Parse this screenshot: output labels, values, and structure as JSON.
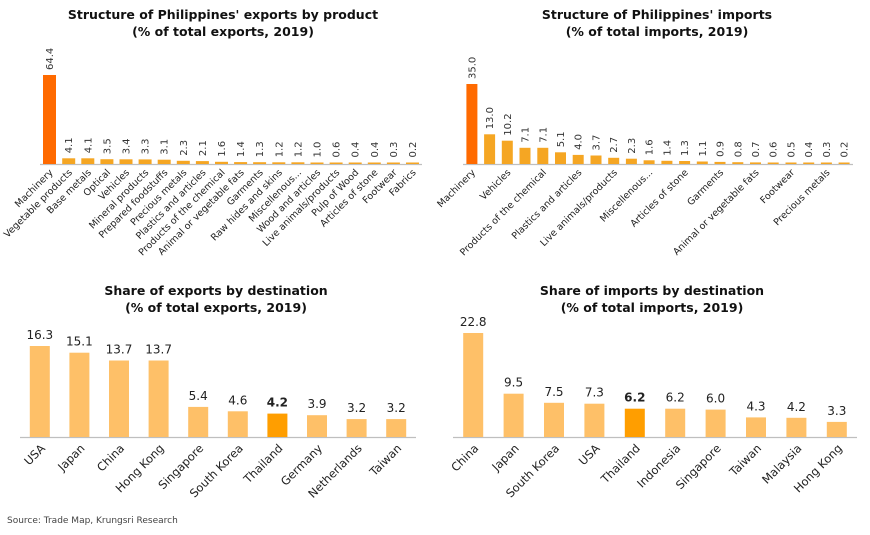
{
  "source": "Source: Trade Map, Krungsri Research",
  "colors": {
    "highlight_dark": "#FF6A00",
    "bar_orange": "#F5A623",
    "bar_light": "#FEC068",
    "thailand_highlight": "#FF9E00",
    "axis": "#BFBFBF"
  },
  "chart_data": [
    {
      "id": "exports_by_product",
      "type": "bar",
      "title": "Structure of Philippines' exports by product",
      "subtitle": "(% of total exports, 2019)",
      "xlabel": "",
      "ylabel": "",
      "ylim": [
        0,
        70
      ],
      "grid": false,
      "value_label_orientation": "vertical",
      "categories": [
        "Machinery",
        "Vegetable products",
        "Base metals",
        "Optical",
        "Vehicles",
        "Mineral products",
        "Prepared foodstuffs",
        "Precious metals",
        "Plastics and articles",
        "Products of the chemical",
        "Animal or vegetable fats",
        "Garments",
        "Raw hides and skins",
        "Miscellenous...",
        "Wood and articles",
        "Live animals/products",
        "Pulp of Wood",
        "Articles of stone",
        "Footwear",
        "Fabrics"
      ],
      "values": [
        64.4,
        4.1,
        4.1,
        3.5,
        3.4,
        3.3,
        3.1,
        2.3,
        2.1,
        1.6,
        1.4,
        1.3,
        1.2,
        1.2,
        1.0,
        0.6,
        0.4,
        0.4,
        0.3,
        0.2
      ],
      "value_labels": [
        "64.4",
        "4.1",
        "4.1",
        "3.5",
        "3.4",
        "3.3",
        "3.1",
        "2.3",
        "2.1",
        "1.6",
        "1.4",
        "1.3",
        "1.2",
        "1.2",
        "1.0",
        "0.6",
        "0.4",
        "0.4",
        "0.3",
        "0.2"
      ],
      "highlight_index": 0
    },
    {
      "id": "imports_by_product",
      "type": "bar",
      "title": "Structure of Philippines' imports",
      "subtitle": "(% of total imports, 2019)",
      "xlabel": "",
      "ylabel": "",
      "ylim": [
        0,
        40
      ],
      "grid": false,
      "value_label_orientation": "vertical",
      "categories": [
        "Machinery",
        "",
        "Vehicles",
        "",
        "Products of the chemical",
        "",
        "Plastics and articles",
        "",
        "Live animals/products",
        "",
        "Miscellenous...",
        "",
        "Articles of stone",
        "",
        "Garments",
        "",
        "Animal or vegetable fats",
        "",
        "Footwear",
        "",
        "Precious metals",
        ""
      ],
      "values": [
        35.0,
        13.0,
        10.2,
        7.1,
        7.1,
        5.1,
        4.0,
        3.7,
        2.7,
        2.3,
        1.6,
        1.4,
        1.3,
        1.1,
        0.9,
        0.8,
        0.7,
        0.6,
        0.5,
        0.4,
        0.3,
        0.2
      ],
      "value_labels": [
        "35.0",
        "13.0",
        "10.2",
        "7.1",
        "7.1",
        "5.1",
        "4.0",
        "3.7",
        "2.7",
        "2.3",
        "1.6",
        "1.4",
        "1.3",
        "1.1",
        "0.9",
        "0.8",
        "0.7",
        "0.6",
        "0.5",
        "0.4",
        "0.3",
        "0.2"
      ],
      "highlight_index": 0
    },
    {
      "id": "exports_by_destination",
      "type": "bar",
      "title": "Share of exports by destination",
      "subtitle": "(% of total exports, 2019)",
      "xlabel": "",
      "ylabel": "",
      "ylim": [
        0,
        18
      ],
      "grid": false,
      "value_label_orientation": "horizontal",
      "categories": [
        "USA",
        "Japan",
        "China",
        "Hong Kong",
        "Singapore",
        "South Korea",
        "Thailand",
        "Germany",
        "Netherlands",
        "Taiwan"
      ],
      "values": [
        16.3,
        15.1,
        13.7,
        13.7,
        5.4,
        4.6,
        4.2,
        3.9,
        3.2,
        3.2
      ],
      "value_labels": [
        "16.3",
        "15.1",
        "13.7",
        "13.7",
        "5.4",
        "4.6",
        "4.2",
        "3.9",
        "3.2",
        "3.2"
      ],
      "highlight_index": 6
    },
    {
      "id": "imports_by_destination",
      "type": "bar",
      "title": "Share of imports by destination",
      "subtitle": "(% of total imports, 2019)",
      "xlabel": "",
      "ylabel": "",
      "ylim": [
        0,
        25
      ],
      "grid": false,
      "value_label_orientation": "horizontal",
      "categories": [
        "China",
        "Japan",
        "South Korea",
        "USA",
        "Thailand",
        "Indonesia",
        "Singapore",
        "Taiwan",
        "Malaysia",
        "Hong Kong"
      ],
      "values": [
        22.8,
        9.5,
        7.5,
        7.3,
        6.2,
        6.2,
        6.0,
        4.3,
        4.2,
        3.3
      ],
      "value_labels": [
        "22.8",
        "9.5",
        "7.5",
        "7.3",
        "6.2",
        "6.2",
        "6.0",
        "4.3",
        "4.2",
        "3.3"
      ],
      "highlight_index": 4
    }
  ]
}
